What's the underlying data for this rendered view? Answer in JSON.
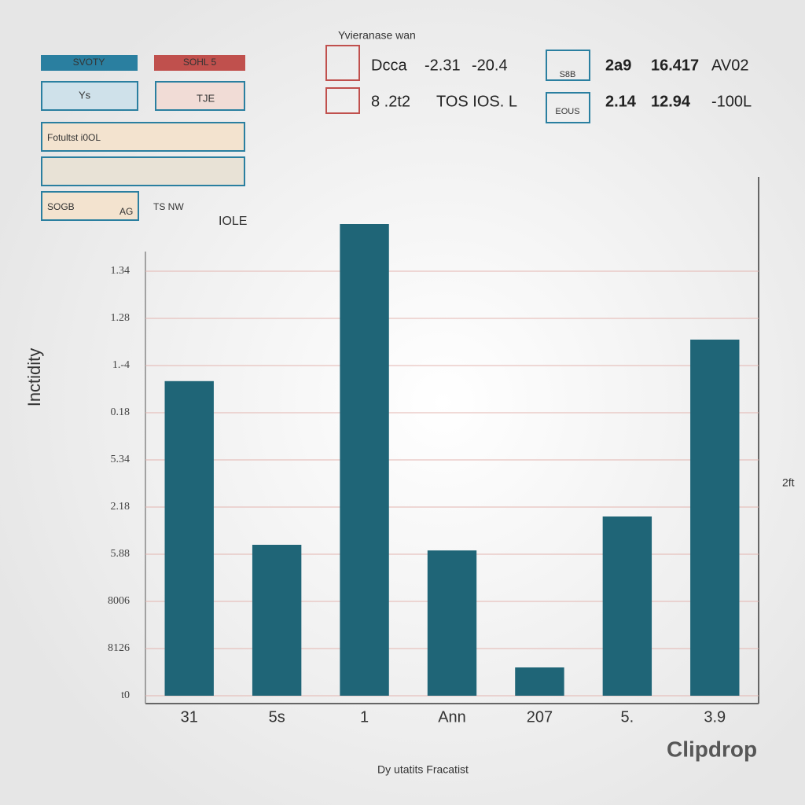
{
  "chart_data": {
    "type": "bar",
    "title": "Yvieranase wan",
    "x_label": "Dy utatits Fracatist",
    "y_label": "Inctidity",
    "y2_label": "2ft",
    "categories": [
      "31",
      "5s",
      "1",
      "Ann",
      "207",
      "5.",
      "3.9"
    ],
    "values": [
      6.67,
      3.2,
      10.0,
      3.08,
      0.6,
      3.8,
      7.55
    ],
    "color": "#1f6577",
    "ylim": [
      0,
      10
    ],
    "yticks": [
      {
        "value": 0,
        "label": "t0"
      },
      {
        "value": 1,
        "label": "8126"
      },
      {
        "value": 2,
        "label": "8006"
      },
      {
        "value": 3,
        "label": "5.88"
      },
      {
        "value": 4,
        "label": "2.18"
      },
      {
        "value": 5,
        "label": "5.34"
      },
      {
        "value": 6,
        "label": "0.18"
      },
      {
        "value": 7,
        "label": "1.-4"
      },
      {
        "value": 8,
        "label": "1.28"
      },
      {
        "value": 9,
        "label": "1.34"
      }
    ],
    "grid": true
  },
  "panel": {
    "legend": [
      "SVOTY",
      "SOHL 5"
    ],
    "rows": [
      "Ys",
      "TJE",
      "Fotultst i0OL",
      "SOGB",
      "AG",
      "TS NW",
      "IOLE"
    ],
    "stats": [
      "Dcca",
      "-2.31",
      "-20.4",
      "8 .2t2",
      "TOS IOS. L",
      "2a9",
      "16.417",
      "AV02",
      "2.14",
      "12.94",
      "-100L"
    ],
    "badges": [
      "S8B",
      "EOUS"
    ],
    "watermark": "Clipdrop"
  }
}
